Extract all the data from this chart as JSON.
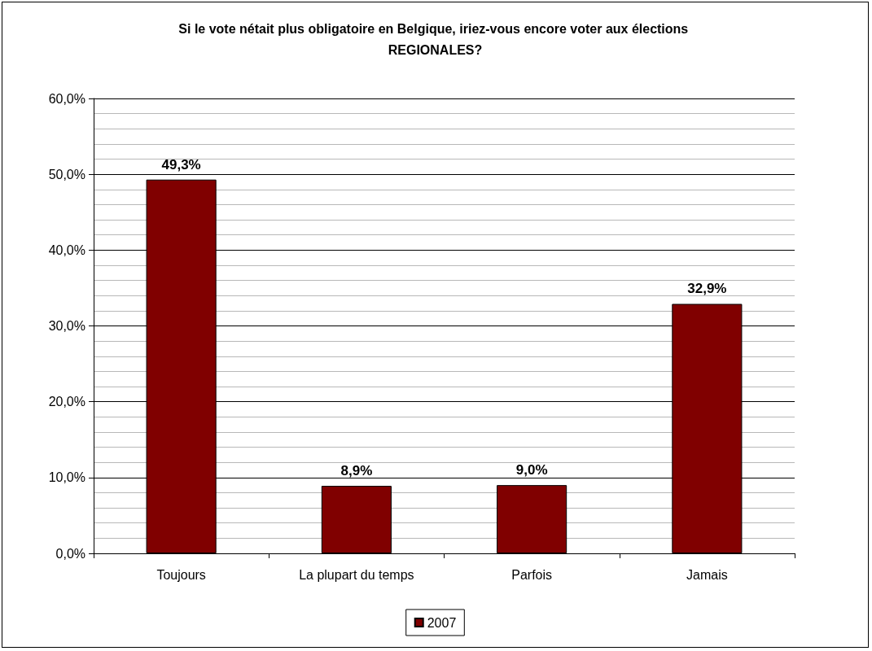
{
  "chart_data": {
    "type": "bar",
    "title": "Si le vote nétait plus obligatoire en Belgique, iriez-vous encore voter aux élections REGIONALES?",
    "categories": [
      "Toujours",
      "La plupart du temps",
      "Parfois",
      "Jamais"
    ],
    "series": [
      {
        "name": "2007",
        "color": "#800000",
        "values": [
          49.3,
          8.9,
          9.0,
          32.9
        ],
        "value_labels": [
          "49,3%",
          "8,9%",
          "9,0%",
          "32,9%"
        ]
      }
    ],
    "ylim": [
      0,
      60
    ],
    "yticks": [
      {
        "value": 0,
        "label": "0,0%"
      },
      {
        "value": 2,
        "label": null
      },
      {
        "value": 4,
        "label": null
      },
      {
        "value": 6,
        "label": null
      },
      {
        "value": 8,
        "label": null
      },
      {
        "value": 10,
        "label": "10,0%"
      },
      {
        "value": 12,
        "label": null
      },
      {
        "value": 14,
        "label": null
      },
      {
        "value": 16,
        "label": null
      },
      {
        "value": 18,
        "label": null
      },
      {
        "value": 20,
        "label": "20,0%"
      },
      {
        "value": 22,
        "label": null
      },
      {
        "value": 24,
        "label": null
      },
      {
        "value": 26,
        "label": null
      },
      {
        "value": 28,
        "label": null
      },
      {
        "value": 30,
        "label": "30,0%"
      },
      {
        "value": 32,
        "label": null
      },
      {
        "value": 34,
        "label": null
      },
      {
        "value": 36,
        "label": null
      },
      {
        "value": 38,
        "label": null
      },
      {
        "value": 40,
        "label": "40,0%"
      },
      {
        "value": 42,
        "label": null
      },
      {
        "value": 44,
        "label": null
      },
      {
        "value": 46,
        "label": null
      },
      {
        "value": 48,
        "label": null
      },
      {
        "value": 50,
        "label": "50,0%"
      },
      {
        "value": 52,
        "label": null
      },
      {
        "value": 54,
        "label": null
      },
      {
        "value": 56,
        "label": null
      },
      {
        "value": 58,
        "label": null
      },
      {
        "value": 60,
        "label": "60,0%"
      }
    ],
    "grid": "y",
    "legend": "bottom"
  }
}
